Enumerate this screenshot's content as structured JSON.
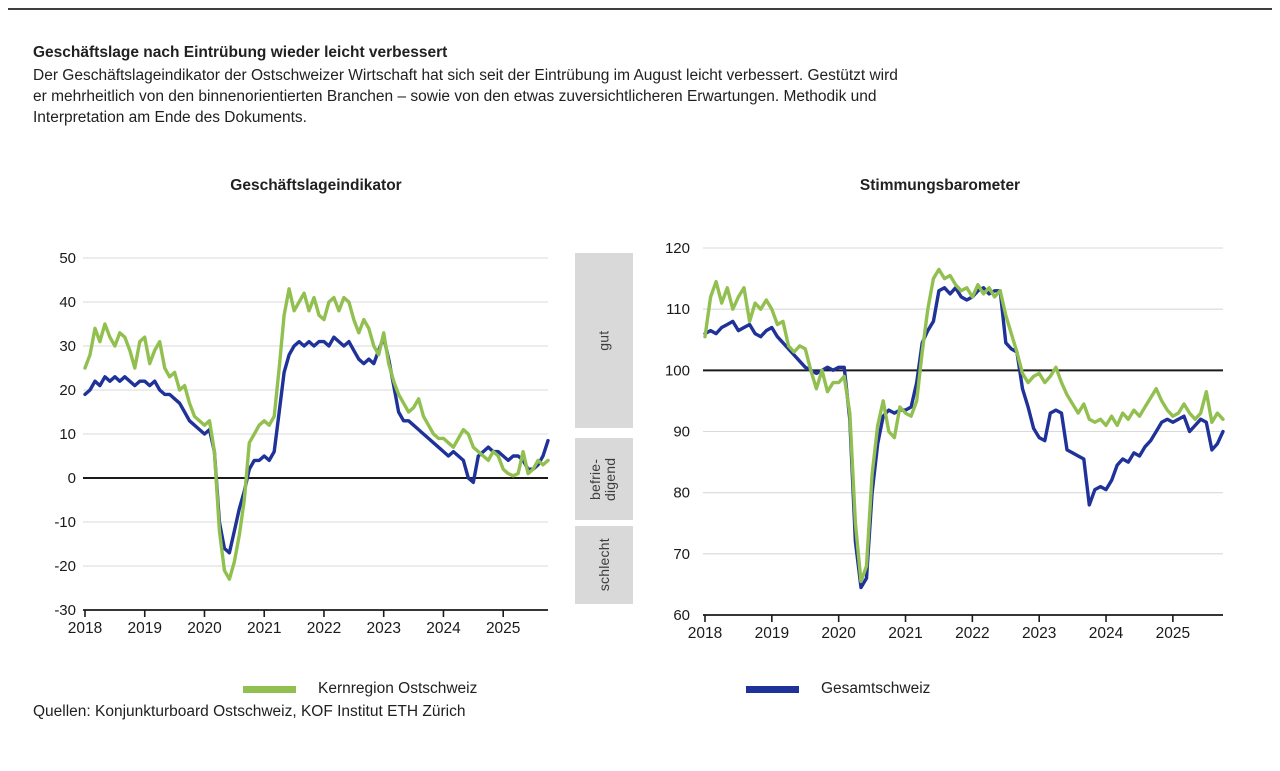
{
  "header": {
    "title": "Geschäftslage nach Eintrübung wieder leicht verbessert",
    "body_lines": [
      "Der Geschäftslageindikator der Ostschweizer Wirtschaft hat sich seit der Eintrübung im August leicht verbessert. Gestützt wird",
      "er mehrheitlich von den binnenorientierten Branchen – sowie von den etwas zuversichtlicheren Erwartungen. Methodik und",
      "Interpretation am Ende des Dokuments."
    ]
  },
  "source": "Quellen: Konjunkturboard Ostschweiz, KOF Institut ETH Zürich",
  "colors": {
    "kernregion": "#92c050",
    "gesamtschweiz": "#1f3299",
    "grid": "#d9d9d9",
    "axis": "#1a1a1a",
    "band_bg": "#d9d9d9",
    "band_text": "#3d3d3d"
  },
  "bands": [
    {
      "label": "gut"
    },
    {
      "label": "befrie-\ndigend"
    },
    {
      "label": "schlecht"
    }
  ],
  "legends": [
    {
      "label": "Kernregion Ostschweiz"
    },
    {
      "label": "Gesamtschweiz"
    }
  ],
  "chart_data": [
    {
      "type": "line",
      "title": "Geschäftslageindikator",
      "xlabel": "",
      "ylabel": "",
      "x_start": "2018-01",
      "x_end": "2025-10",
      "frequency": "monthly",
      "x_tick_labels": [
        "2018",
        "2019",
        "2020",
        "2021",
        "2022",
        "2023",
        "2024",
        "2025"
      ],
      "ylim": [
        -30,
        50
      ],
      "y_step": 10,
      "reference_line": 0,
      "grid": true,
      "legend_position": "bottom",
      "series": [
        {
          "name": "Kernregion Ostschweiz",
          "color_key": "kernregion",
          "values": [
            25,
            28,
            34,
            31,
            35,
            32,
            30,
            33,
            32,
            29,
            25,
            31,
            32,
            26,
            29,
            31,
            25,
            23,
            24,
            20,
            21,
            17,
            14,
            13,
            12,
            13,
            6,
            -12,
            -21,
            -23,
            -19,
            -13,
            -5,
            8,
            10,
            12,
            13,
            12,
            14,
            25,
            37,
            43,
            38,
            40,
            42,
            38,
            41,
            37,
            36,
            40,
            41,
            38,
            41,
            40,
            36,
            33,
            36,
            34,
            30,
            28,
            33,
            26,
            22,
            19,
            17,
            15,
            16,
            18,
            14,
            12,
            10,
            9,
            9,
            8,
            7,
            9,
            11,
            10,
            7,
            6,
            5,
            4,
            6,
            5,
            2,
            1,
            0.5,
            1,
            6,
            1,
            2,
            4,
            3,
            4
          ]
        },
        {
          "name": "Gesamtschweiz",
          "color_key": "gesamtschweiz",
          "values": [
            19,
            20,
            22,
            21,
            23,
            22,
            23,
            22,
            23,
            22,
            21,
            22,
            22,
            21,
            22,
            20,
            19,
            19,
            18,
            17,
            15,
            13,
            12,
            11,
            10,
            11,
            6,
            -10,
            -16,
            -17,
            -12,
            -7,
            -3,
            2,
            4,
            4,
            5,
            4,
            6,
            15,
            24,
            28,
            30,
            31,
            30,
            31,
            30,
            31,
            31,
            30,
            32,
            31,
            30,
            31,
            29,
            27,
            26,
            27,
            26,
            29,
            32,
            27,
            21,
            15,
            13,
            13,
            12,
            11,
            10,
            9,
            8,
            7,
            6,
            5,
            6,
            5,
            4,
            0,
            -1,
            5,
            6,
            7,
            6,
            6,
            5,
            4,
            5,
            5,
            4,
            2,
            2,
            3,
            5,
            8.5
          ]
        }
      ]
    },
    {
      "type": "line",
      "title": "Stimmungsbarometer",
      "xlabel": "",
      "ylabel": "",
      "x_start": "2018-01",
      "x_end": "2025-10",
      "frequency": "monthly",
      "x_tick_labels": [
        "2018",
        "2019",
        "2020",
        "2021",
        "2022",
        "2023",
        "2024",
        "2025"
      ],
      "ylim": [
        60,
        120
      ],
      "y_step": 10,
      "reference_line": 100,
      "grid": true,
      "legend_position": "bottom",
      "series": [
        {
          "name": "Kernregion Ostschweiz",
          "color_key": "kernregion",
          "values": [
            105.5,
            112,
            114.5,
            111,
            113.5,
            110,
            112,
            113.5,
            108,
            111,
            110,
            111.5,
            110,
            107.5,
            108,
            104,
            103,
            104,
            103.5,
            100,
            97,
            100,
            96.5,
            98,
            98,
            99,
            93,
            75,
            65.5,
            68,
            83,
            91,
            95,
            90,
            89,
            94,
            93,
            92.5,
            95,
            103,
            110,
            115,
            116.5,
            115,
            115.5,
            114,
            113,
            113.5,
            112,
            114,
            112.5,
            113.5,
            112,
            113,
            109,
            106,
            103,
            99.5,
            98,
            99,
            99.5,
            98,
            99,
            100.5,
            98,
            96,
            94.5,
            93,
            94.5,
            92,
            91.5,
            92,
            91,
            92.5,
            91,
            93,
            92,
            93.5,
            92.5,
            94,
            95.5,
            97,
            95,
            93.5,
            92.5,
            93,
            94.5,
            93,
            92,
            93,
            96.5,
            91.5,
            93,
            92
          ]
        },
        {
          "name": "Gesamtschweiz",
          "color_key": "gesamtschweiz",
          "values": [
            106,
            106.5,
            106,
            107,
            107.5,
            108,
            106.5,
            107,
            107.5,
            106,
            105.5,
            106.5,
            107,
            105.5,
            104.5,
            103.5,
            102.5,
            101.5,
            100.5,
            100,
            99.5,
            100,
            100.5,
            100,
            100.5,
            100.5,
            92,
            72,
            64.5,
            66,
            80,
            88,
            92.5,
            93.5,
            93,
            93.5,
            93.5,
            94,
            98,
            104.5,
            106.5,
            108,
            113,
            113.5,
            112.5,
            113.5,
            112,
            111.5,
            112,
            113,
            113.5,
            112.5,
            113,
            113,
            104.5,
            103.5,
            103,
            97,
            94,
            90.5,
            89,
            88.5,
            93,
            93.5,
            93,
            87,
            86.5,
            86,
            85.5,
            78,
            80.5,
            81,
            80.5,
            82,
            84.5,
            85.5,
            85,
            86.5,
            86,
            87.5,
            88.5,
            90,
            91.5,
            92,
            91.5,
            92,
            92.5,
            90,
            91,
            92,
            91.5,
            87,
            88,
            90
          ]
        }
      ]
    }
  ]
}
